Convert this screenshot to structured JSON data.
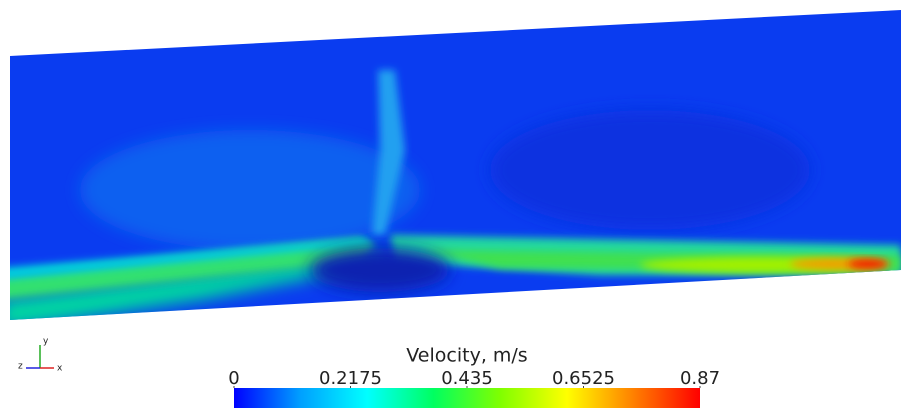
{
  "chart_data": {
    "type": "colorfield",
    "colorbar": {
      "title": "Velocity, m/s",
      "lim": [
        0,
        0.87
      ],
      "ticks": [
        0,
        0.2175,
        0.435,
        0.6525,
        0.87
      ],
      "colors": [
        "#0000ff",
        "#00a0ff",
        "#00ffff",
        "#00ff60",
        "#80ff00",
        "#ffff00",
        "#ff8000",
        "#ff0000"
      ]
    },
    "axes_triad": {
      "y": "y",
      "z": "z",
      "x": "x"
    }
  }
}
